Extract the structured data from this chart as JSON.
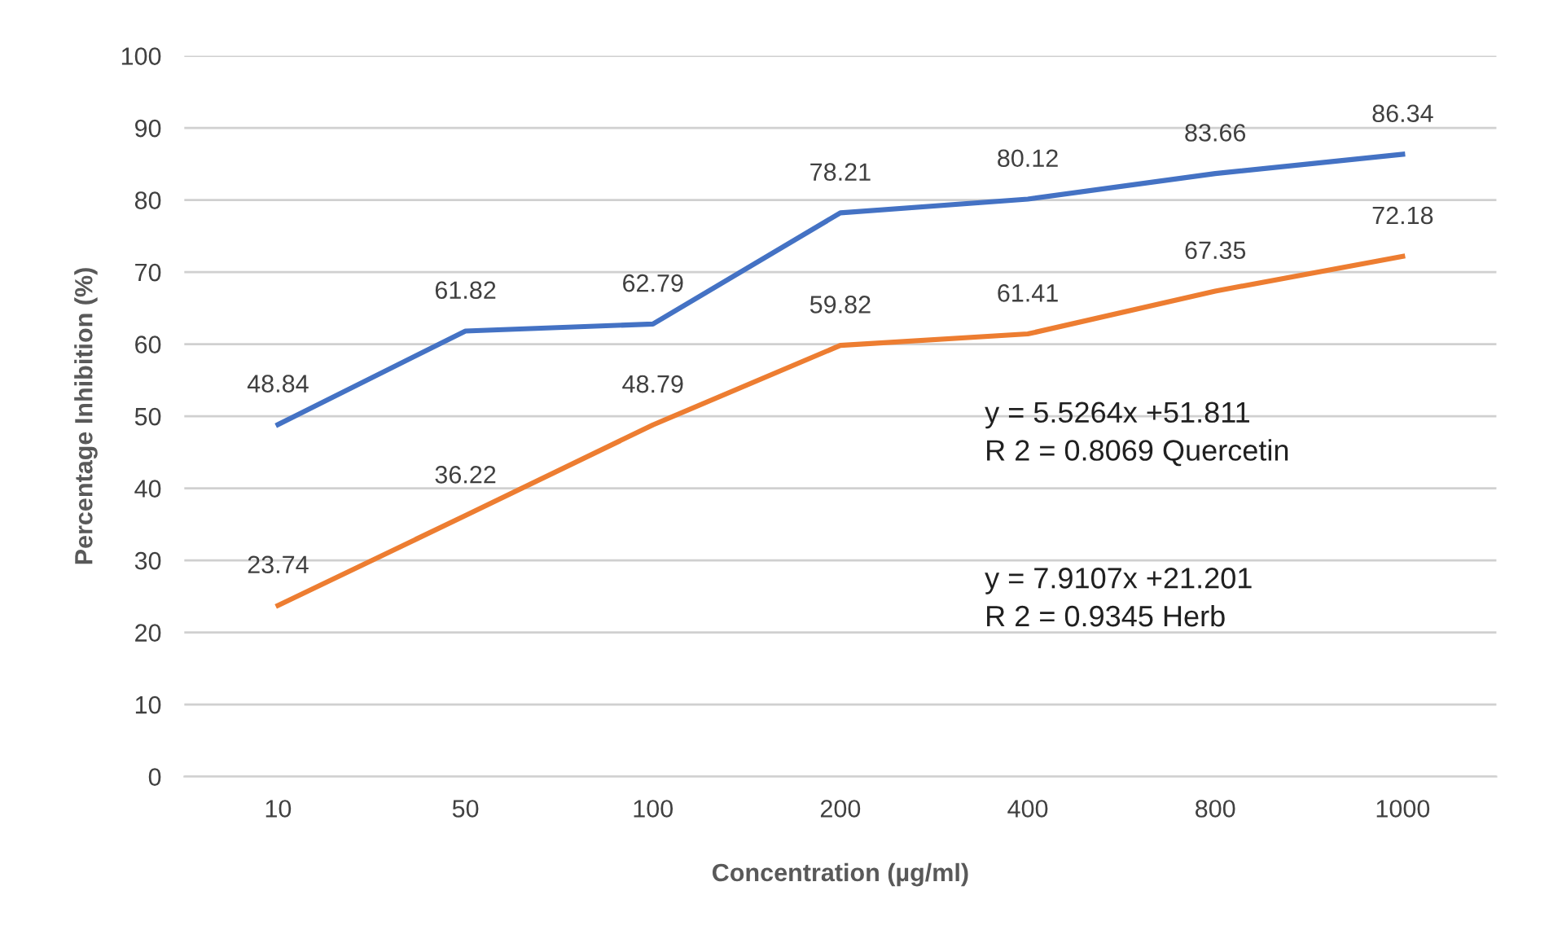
{
  "chart_data": {
    "type": "line",
    "xlabel": "Concentration (µg/ml)",
    "ylabel": "Percentage Inhibition (%)",
    "categories": [
      "10",
      "50",
      "100",
      "200",
      "400",
      "800",
      "1000"
    ],
    "series": [
      {
        "color": "#4472c4",
        "values": [
          48.84,
          61.82,
          62.79,
          78.21,
          80.12,
          83.66,
          86.34
        ]
      },
      {
        "color": "#ed7d31",
        "values": [
          23.74,
          36.22,
          48.79,
          59.82,
          61.41,
          67.35,
          72.18
        ]
      }
    ],
    "ylim": [
      0,
      100
    ],
    "yticks": [
      0,
      10,
      20,
      30,
      40,
      50,
      60,
      70,
      80,
      90,
      100
    ],
    "grid": "y",
    "data_labels": true,
    "marker": "none",
    "line_style": "solid",
    "annotations": [
      "y = 5.5264x +51.811\nR 2 = 0.8069 Quercetin",
      "y = 7.9107x +21.201\nR 2 = 0.9345 Herb"
    ]
  }
}
